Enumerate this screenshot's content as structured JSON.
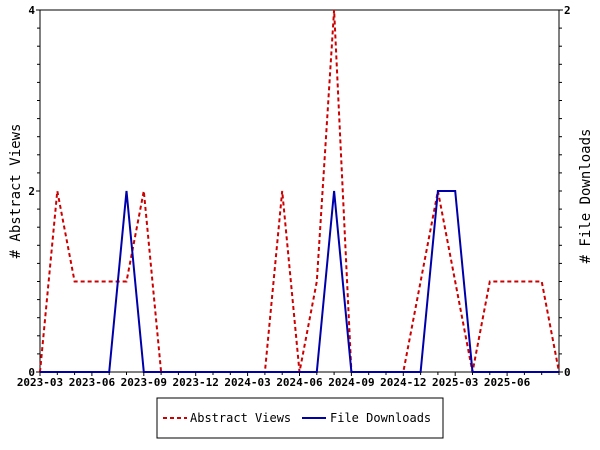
{
  "chart_data": {
    "type": "line",
    "x": [
      "2023-03",
      "2023-04",
      "2023-05",
      "2023-06",
      "2023-07",
      "2023-08",
      "2023-09",
      "2023-10",
      "2023-11",
      "2023-12",
      "2024-01",
      "2024-02",
      "2024-03",
      "2024-04",
      "2024-05",
      "2024-06",
      "2024-07",
      "2024-08",
      "2024-09",
      "2024-10",
      "2024-11",
      "2024-12",
      "2025-01",
      "2025-02",
      "2025-03",
      "2025-04",
      "2025-05",
      "2025-06",
      "2025-07",
      "2025-08",
      "2025-09"
    ],
    "x_tick_labels": [
      "2023-03",
      "2023-06",
      "2023-09",
      "2023-12",
      "2024-03",
      "2024-06",
      "2024-09",
      "2024-12",
      "2025-03",
      "2025-06"
    ],
    "series": [
      {
        "name": "Abstract Views",
        "axis": "left",
        "color": "#cc0000",
        "dash": "dashed",
        "values": [
          0,
          2,
          1,
          1,
          1,
          1,
          2,
          0,
          0,
          0,
          0,
          0,
          0,
          0,
          2,
          0,
          1,
          4,
          0,
          0,
          0,
          0,
          1,
          2,
          1,
          0,
          1,
          1,
          1,
          1,
          0
        ]
      },
      {
        "name": "File Downloads",
        "axis": "left",
        "color": "#0000aa",
        "dash": "solid",
        "values": [
          0,
          0,
          0,
          0,
          0,
          2,
          0,
          0,
          0,
          0,
          0,
          0,
          0,
          0,
          0,
          0,
          0,
          2,
          0,
          0,
          0,
          0,
          0,
          2,
          2,
          0,
          0,
          0,
          0,
          0,
          0
        ]
      }
    ],
    "y_left": {
      "label": "# Abstract Views",
      "range": [
        0,
        4
      ],
      "ticks": [
        "0",
        "2",
        "4"
      ]
    },
    "y_right": {
      "label": "# File Downloads",
      "range": [
        0,
        2
      ],
      "ticks": [
        "0",
        "2"
      ]
    },
    "legend": {
      "placement": "bottom-center"
    },
    "grid": false
  }
}
